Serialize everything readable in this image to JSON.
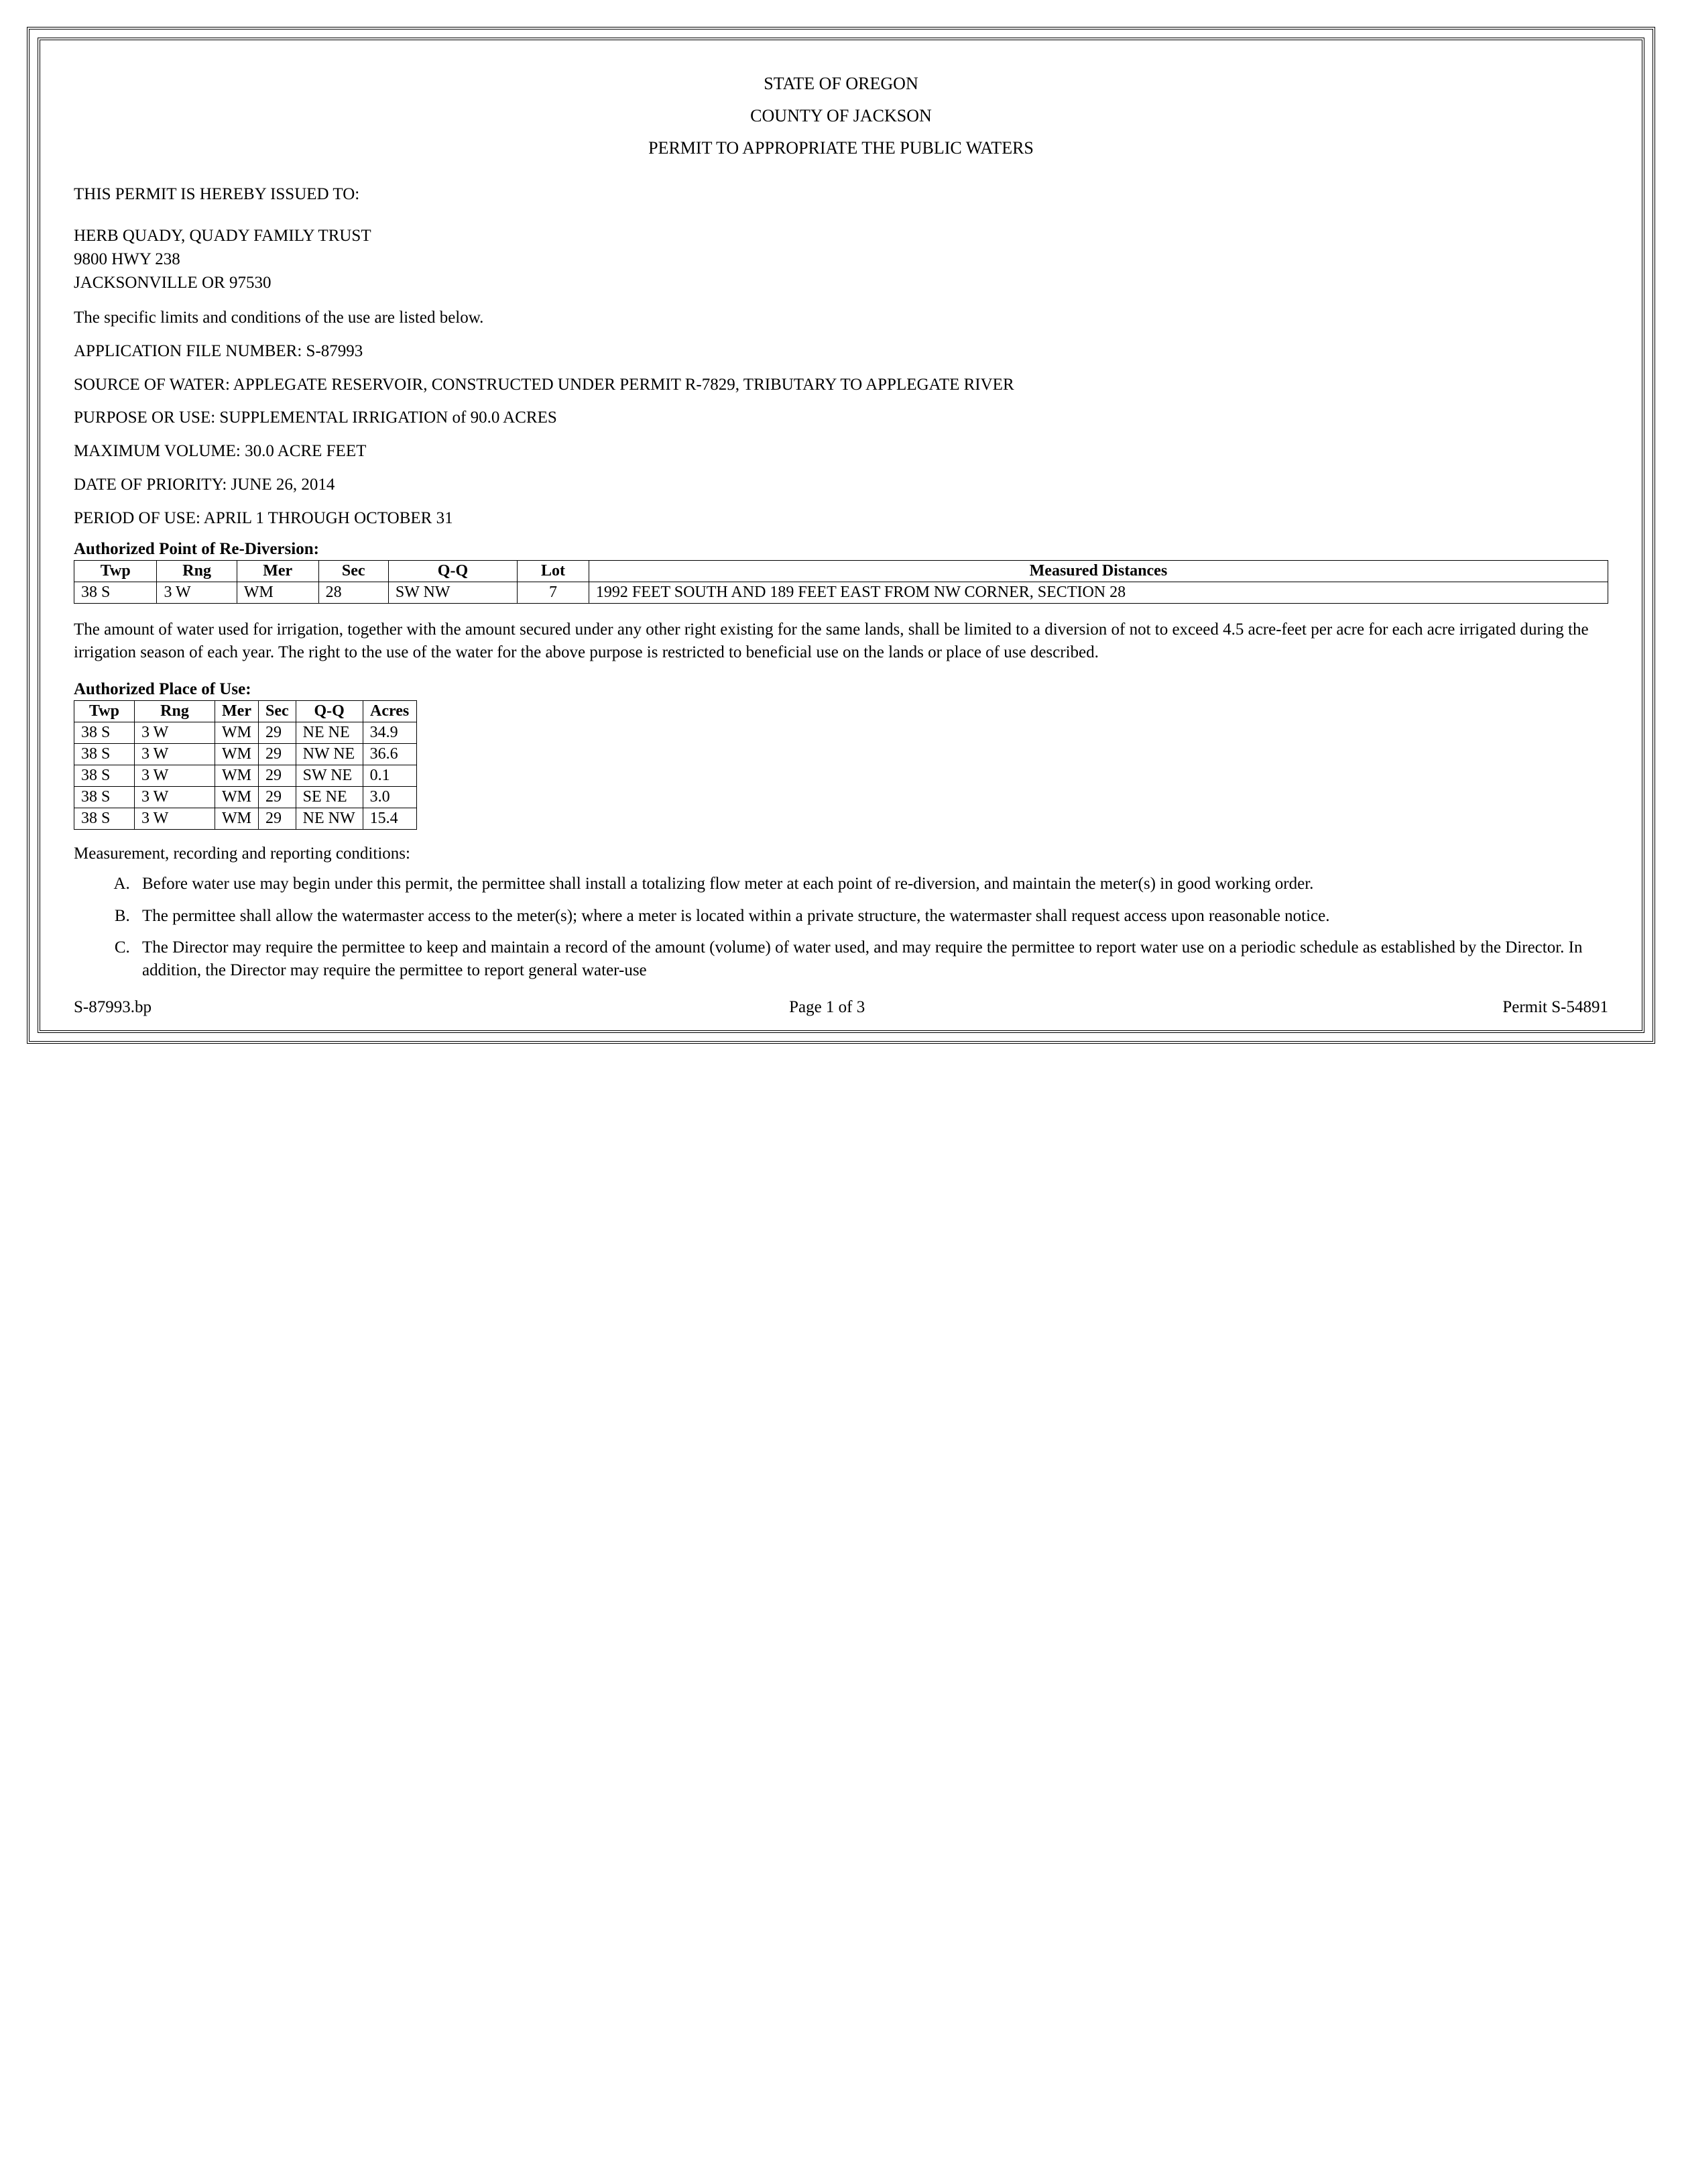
{
  "header": {
    "line1": "STATE OF OREGON",
    "line2": "COUNTY OF JACKSON",
    "line3": "PERMIT TO APPROPRIATE THE PUBLIC WATERS"
  },
  "issued_to_label": "THIS PERMIT IS HEREBY ISSUED TO:",
  "recipient": {
    "name": "HERB QUADY, QUADY FAMILY TRUST",
    "address1": "9800 HWY 238",
    "address2": "JACKSONVILLE OR  97530"
  },
  "limits_intro": "The specific limits and conditions of the use are listed below.",
  "application_file": "APPLICATION FILE NUMBER: S-87993",
  "source": "SOURCE OF WATER: APPLEGATE RESERVOIR, CONSTRUCTED UNDER PERMIT R-7829, TRIBUTARY TO APPLEGATE RIVER",
  "purpose": "PURPOSE OR USE: SUPPLEMENTAL IRRIGATION of 90.0 ACRES",
  "max_volume": "MAXIMUM VOLUME: 30.0 ACRE FEET",
  "priority_date": "DATE OF PRIORITY: JUNE 26, 2014",
  "period": "PERIOD OF USE: APRIL 1 THROUGH OCTOBER 31",
  "diversion": {
    "title": "Authorized Point of Re-Diversion:",
    "headers": [
      "Twp",
      "Rng",
      "Mer",
      "Sec",
      "Q-Q",
      "Lot",
      "Measured Distances"
    ],
    "row": {
      "twp": "38 S",
      "rng": "3 W",
      "mer": "WM",
      "sec": "28",
      "qq": "SW NW",
      "lot": "7",
      "dist": "1992 FEET SOUTH AND 189 FEET EAST FROM NW CORNER, SECTION 28"
    }
  },
  "irrigation_para": "The amount of water used for irrigation, together with the amount secured under any other right existing for the same lands, shall be limited to a diversion of not to exceed 4.5 acre-feet per acre for each acre irrigated during the irrigation season of each year.  The right to the use of the water for the above purpose is restricted to beneficial use on the lands or place of use described.",
  "place_of_use": {
    "title": "Authorized Place of Use:",
    "headers": [
      "Twp",
      "Rng",
      "Mer",
      "Sec",
      "Q-Q",
      "Acres"
    ],
    "rows": [
      {
        "twp": "38 S",
        "rng": "3 W",
        "mer": "WM",
        "sec": "29",
        "qq": "NE NE",
        "acres": "34.9"
      },
      {
        "twp": "38 S",
        "rng": "3 W",
        "mer": "WM",
        "sec": "29",
        "qq": "NW NE",
        "acres": "36.6"
      },
      {
        "twp": "38 S",
        "rng": "3 W",
        "mer": "WM",
        "sec": "29",
        "qq": "SW NE",
        "acres": "0.1"
      },
      {
        "twp": "38 S",
        "rng": "3 W",
        "mer": "WM",
        "sec": "29",
        "qq": "SE NE",
        "acres": "3.0"
      },
      {
        "twp": "38 S",
        "rng": "3 W",
        "mer": "WM",
        "sec": "29",
        "qq": "NE NW",
        "acres": "15.4"
      }
    ]
  },
  "conditions_title": "Measurement, recording and reporting conditions:",
  "conditions": [
    "Before water use may begin under this permit, the permittee shall install a totalizing flow meter at each point of re-diversion, and maintain the meter(s) in good working order.",
    "The permittee shall allow the watermaster access to the meter(s); where a meter is located within a private structure, the watermaster shall request access upon reasonable notice.",
    "The Director may require the permittee to keep and maintain a record of the amount (volume) of water used, and may require the permittee to report water use on a periodic schedule as established by the Director.  In addition, the Director may require the permittee to report general water-use"
  ],
  "footer": {
    "left": "S-87993.bp",
    "center": "Page 1 of 3",
    "right": "Permit S-54891"
  }
}
